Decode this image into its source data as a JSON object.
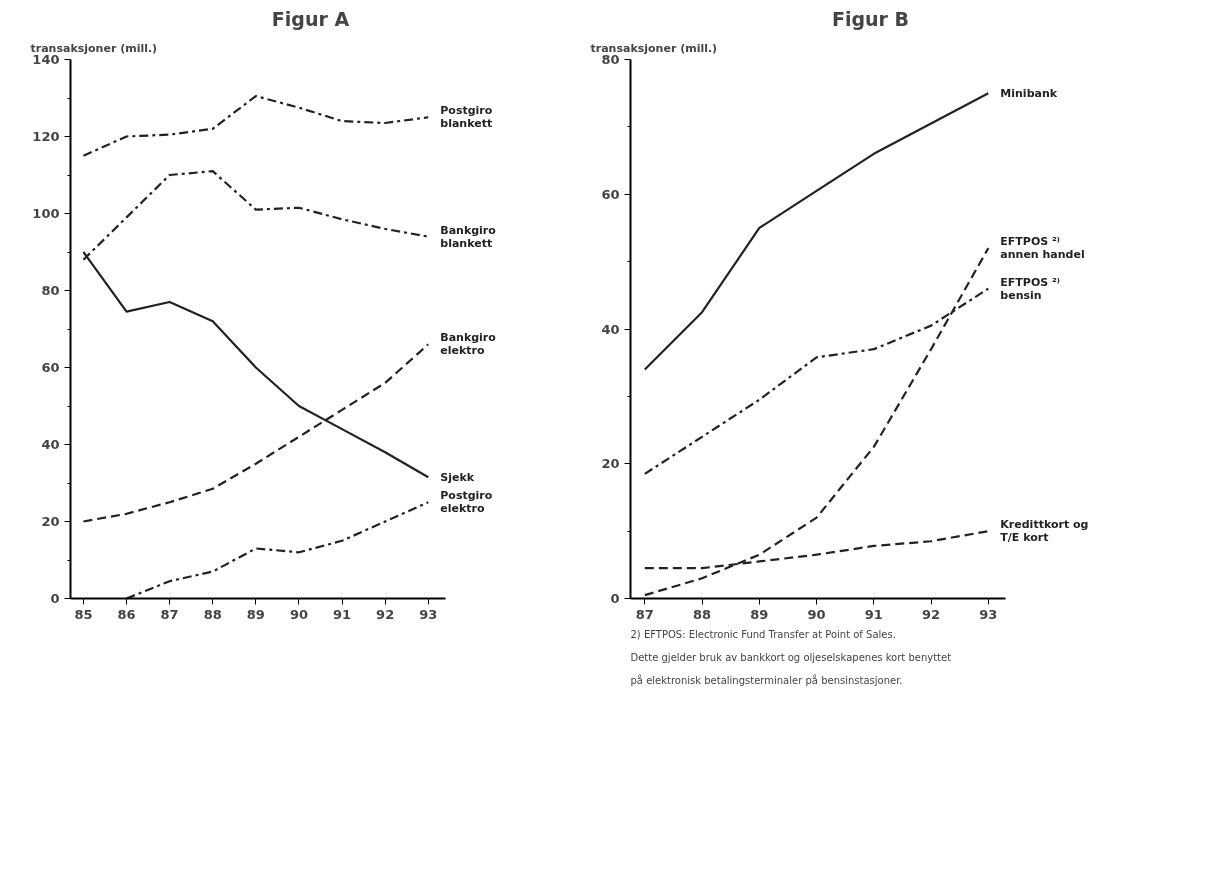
{
  "chart_data": [
    {
      "type": "line",
      "title": "Figur A",
      "ylabel": "transaksjoner (mill.)",
      "x": [
        85,
        86,
        87,
        88,
        89,
        90,
        91,
        92,
        93
      ],
      "xlim": [
        84.7,
        93.4
      ],
      "xticks": [
        85,
        86,
        87,
        88,
        89,
        90,
        91,
        92,
        93
      ],
      "ylim": [
        0,
        140
      ],
      "yticks": [
        0,
        20,
        40,
        60,
        80,
        100,
        120,
        140
      ],
      "grid": false,
      "legend": false,
      "marker": "none",
      "series": [
        {
          "name": "Postgiro\nblankett",
          "color": "#222222",
          "line_style": "dashdot",
          "values": [
            115,
            120,
            120.5,
            122,
            130.5,
            127.5,
            124,
            123.5,
            125
          ]
        },
        {
          "name": "Bankgiro\nblankett",
          "color": "#222222",
          "line_style": "dashdot",
          "values": [
            88,
            99,
            110,
            111,
            101,
            101.5,
            98.5,
            96,
            94
          ]
        },
        {
          "name": "Sjekk",
          "color": "#222222",
          "line_style": "solid",
          "values": [
            90,
            74.5,
            77,
            72,
            60,
            50,
            44,
            38,
            31.5
          ]
        },
        {
          "name": "Bankgiro\nelektro",
          "color": "#222222",
          "line_style": "dashed",
          "values": [
            20,
            22,
            25,
            28.5,
            35,
            42,
            49,
            56,
            66
          ]
        },
        {
          "name": "Postgiro\nelektro",
          "color": "#222222",
          "line_style": "dashdot",
          "values": [
            null,
            0,
            4.5,
            7,
            13,
            12,
            15,
            20,
            25
          ]
        }
      ]
    },
    {
      "type": "line",
      "title": "Figur B",
      "ylabel": "transaksjoner (mill.)",
      "x": [
        87,
        88,
        89,
        90,
        91,
        92,
        93
      ],
      "xlim": [
        86.75,
        93.3
      ],
      "xticks": [
        87,
        88,
        89,
        90,
        91,
        92,
        93
      ],
      "ylim": [
        0,
        80
      ],
      "yticks": [
        0,
        20,
        40,
        60,
        80
      ],
      "grid": false,
      "legend": false,
      "marker": "none",
      "series": [
        {
          "name": "Minibank",
          "color": "#222222",
          "line_style": "solid",
          "values": [
            34,
            42.5,
            55,
            60.5,
            66,
            70.5,
            75
          ]
        },
        {
          "name": "EFTPOS ²⁾\nannen handel",
          "color": "#222222",
          "line_style": "dashed",
          "values": [
            0.5,
            3,
            6.5,
            12,
            22.5,
            37,
            52
          ]
        },
        {
          "name": "EFTPOS ²⁾\nbensin",
          "color": "#222222",
          "line_style": "dashdot",
          "values": [
            18.5,
            24,
            29.5,
            35.8,
            37,
            40.5,
            46
          ]
        },
        {
          "name": "Kredittkort og\nT/E kort",
          "color": "#222222",
          "line_style": "dashed",
          "values": [
            4.5,
            4.5,
            5.5,
            6.5,
            7.8,
            8.5,
            10
          ]
        }
      ],
      "annotations": [
        "2)   EFTPOS: Electronic Fund Transfer at Point of  Sales.\n      Dette gjelder bruk av bankkort og oljeselskapenes kort benyttet\n      på elektronisk betalingsterminaler på bensinstasjoner."
      ]
    }
  ]
}
